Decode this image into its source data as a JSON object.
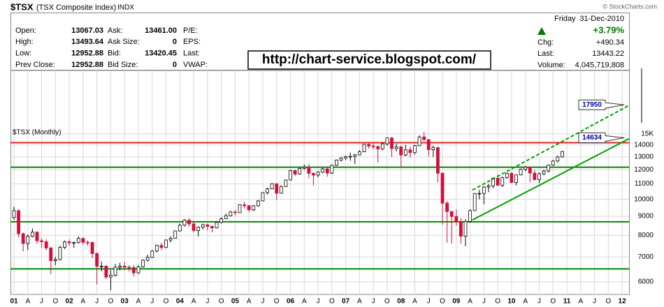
{
  "header": {
    "symbol": "$TSX",
    "name": "(TSX Composite Index)",
    "exchange": "INDX",
    "copyright": "© StockCharts.com",
    "weekday": "Friday",
    "date": "31-Dec-2010",
    "change_pct": "+3.79%",
    "url": "http://chart-service.blogspot.com/",
    "fields": [
      [
        "Open:",
        "13067.03",
        "Ask:",
        "13461.00",
        "P/E:"
      ],
      [
        "High:",
        "13493.64",
        "Ask Size:",
        "0",
        "EPS:"
      ],
      [
        "Low:",
        "12952.88",
        "Bid:",
        "13420.45",
        "Last:"
      ],
      [
        "Prev Close:",
        "12952.88",
        "Bid Size:",
        "0",
        "VWAP:"
      ]
    ],
    "right_fields": [
      [
        "Chg:",
        "+490.34"
      ],
      [
        "Last:",
        "13443.22"
      ],
      [
        "Volume:",
        "4,045,719,808"
      ]
    ]
  },
  "chart_data": {
    "type": "candlestick",
    "title": "$TSX (Monthly)",
    "log_scale": true,
    "grid": true,
    "up_color": "#000000",
    "down_color": "#d0103a",
    "xlim": [
      -0.76,
      133.5
    ],
    "ylim": [
      5550,
      22200
    ],
    "yticks": [
      6000,
      7000,
      8000,
      9000,
      10000,
      11000,
      12000,
      13000,
      14000,
      {
        "value": 15000,
        "label": "15K"
      }
    ],
    "xticks": [
      {
        "value": 0,
        "label": "01"
      },
      {
        "value": 3,
        "label": "A"
      },
      {
        "value": 6,
        "label": "J"
      },
      {
        "value": 9,
        "label": "O"
      },
      {
        "value": 12,
        "label": "02"
      },
      {
        "value": 15,
        "label": "A"
      },
      {
        "value": 18,
        "label": "J"
      },
      {
        "value": 21,
        "label": "O"
      },
      {
        "value": 24,
        "label": "03"
      },
      {
        "value": 27,
        "label": "A"
      },
      {
        "value": 30,
        "label": "J"
      },
      {
        "value": 33,
        "label": "O"
      },
      {
        "value": 36,
        "label": "04"
      },
      {
        "value": 39,
        "label": "A"
      },
      {
        "value": 42,
        "label": "J"
      },
      {
        "value": 45,
        "label": "O"
      },
      {
        "value": 48,
        "label": "05"
      },
      {
        "value": 51,
        "label": "A"
      },
      {
        "value": 54,
        "label": "J"
      },
      {
        "value": 57,
        "label": "O"
      },
      {
        "value": 60,
        "label": "06"
      },
      {
        "value": 63,
        "label": "A"
      },
      {
        "value": 66,
        "label": "J"
      },
      {
        "value": 69,
        "label": "O"
      },
      {
        "value": 72,
        "label": "07"
      },
      {
        "value": 75,
        "label": "A"
      },
      {
        "value": 78,
        "label": "J"
      },
      {
        "value": 81,
        "label": "O"
      },
      {
        "value": 84,
        "label": "08"
      },
      {
        "value": 87,
        "label": "A"
      },
      {
        "value": 90,
        "label": "J"
      },
      {
        "value": 93,
        "label": "O"
      },
      {
        "value": 96,
        "label": "09"
      },
      {
        "value": 99,
        "label": "A"
      },
      {
        "value": 102,
        "label": "J"
      },
      {
        "value": 105,
        "label": "O"
      },
      {
        "value": 108,
        "label": "10"
      },
      {
        "value": 111,
        "label": "A"
      },
      {
        "value": 114,
        "label": "J"
      },
      {
        "value": 117,
        "label": "O"
      },
      {
        "value": 120,
        "label": "11"
      },
      {
        "value": 123,
        "label": "A"
      },
      {
        "value": 126,
        "label": "J"
      },
      {
        "value": 129,
        "label": "O"
      },
      {
        "value": 132,
        "label": "12"
      }
    ],
    "open": [
      8934,
      9322,
      8079,
      7608,
      7947,
      8162,
      7736,
      7690,
      7399,
      6839,
      6886,
      7426,
      7688,
      7638,
      7651,
      7851,
      7663,
      7656,
      7146,
      6605,
      6612,
      6180,
      6249,
      6570,
      6615,
      6569,
      6555,
      6343,
      6586,
      6860,
      6983,
      7258,
      7517,
      7421,
      7773,
      7859,
      8221,
      8521,
      8788,
      8586,
      8244,
      8417,
      8546,
      8458,
      8377,
      8668,
      8871,
      9030,
      9247,
      9204,
      9669,
      9612,
      9369,
      9607,
      9903,
      10423,
      10669,
      11012,
      10383,
      10824,
      11272,
      11946,
      11688,
      12111,
      12204,
      11745,
      11613,
      11831,
      12074,
      11761,
      12345,
      12752,
      12908,
      13034,
      13045,
      13166,
      13417,
      14057,
      13907,
      13869,
      13660,
      14099,
      14625,
      13689,
      13833,
      13155,
      13583,
      13350,
      13937,
      14715,
      14467,
      13593,
      13771,
      11753,
      9763,
      9271,
      8988,
      8695,
      7957,
      8720,
      9325,
      10370,
      10375,
      10787,
      10868,
      11395,
      10911,
      11447,
      11746,
      11094,
      11630,
      12038,
      12211,
      11763,
      11294,
      11713,
      11914,
      12369,
      12676,
      13001
    ],
    "high": [
      9550,
      9400,
      8150,
      8050,
      8350,
      8200,
      7850,
      7800,
      7450,
      7000,
      7500,
      7750,
      7800,
      7700,
      7950,
      7900,
      7750,
      7700,
      7200,
      6800,
      6650,
      6450,
      6700,
      6750,
      6800,
      6650,
      6650,
      6650,
      6900,
      7100,
      7300,
      7550,
      7650,
      7800,
      7950,
      8250,
      8600,
      8850,
      8900,
      8700,
      8450,
      8600,
      8600,
      8500,
      8700,
      8950,
      9150,
      9300,
      9350,
      9700,
      9850,
      9650,
      9650,
      9950,
      10450,
      10750,
      11050,
      11050,
      10900,
      11300,
      12000,
      12000,
      12150,
      12400,
      12450,
      11800,
      11900,
      12150,
      12250,
      12400,
      12800,
      13000,
      13100,
      13350,
      13250,
      13550,
      14100,
      14150,
      14250,
      13900,
      14200,
      14650,
      14700,
      14100,
      13950,
      14000,
      13850,
      14000,
      14850,
      15150,
      14500,
      13950,
      13850,
      11800,
      9900,
      9300,
      9400,
      8900,
      8850,
      9400,
      10400,
      10600,
      10850,
      11000,
      11450,
      11650,
      11500,
      11800,
      11850,
      11650,
      12100,
      12300,
      12250,
      12000,
      11800,
      12000,
      12400,
      12750,
      13100,
      13500
    ],
    "low": [
      8800,
      7900,
      7250,
      7300,
      7900,
      7600,
      7400,
      7300,
      6300,
      6650,
      6850,
      7350,
      7500,
      7400,
      7600,
      7550,
      7500,
      6950,
      5900,
      6400,
      6100,
      5700,
      6200,
      6450,
      6450,
      6400,
      6200,
      6300,
      6550,
      6800,
      6950,
      7200,
      7300,
      7400,
      7650,
      7850,
      8200,
      8450,
      8450,
      8150,
      7950,
      8300,
      8250,
      8150,
      8350,
      8600,
      8850,
      9000,
      9050,
      9200,
      9450,
      9250,
      9300,
      9550,
      9900,
      10300,
      10650,
      9950,
      10350,
      10800,
      11250,
      11550,
      11650,
      12000,
      11400,
      10900,
      11450,
      11750,
      11500,
      11700,
      12300,
      12650,
      12750,
      12700,
      12450,
      13150,
      13400,
      13700,
      13600,
      12550,
      13550,
      13950,
      13000,
      13450,
      12250,
      13050,
      12950,
      13200,
      13900,
      14350,
      13050,
      13000,
      11100,
      8550,
      7650,
      7600,
      8500,
      7600,
      7480,
      8650,
      9300,
      10000,
      9700,
      10450,
      10700,
      10850,
      10800,
      11350,
      11050,
      10900,
      11600,
      11900,
      11100,
      11250,
      11050,
      11600,
      11800,
      12300,
      12550,
      12950
    ],
    "close": [
      9322,
      8079,
      7608,
      7947,
      8162,
      7736,
      7690,
      7399,
      6839,
      6886,
      7426,
      7688,
      7638,
      7651,
      7851,
      7663,
      7656,
      7146,
      6605,
      6612,
      6180,
      6249,
      6570,
      6615,
      6569,
      6555,
      6343,
      6586,
      6860,
      6983,
      7258,
      7517,
      7421,
      7773,
      7859,
      8221,
      8521,
      8788,
      8586,
      8244,
      8417,
      8546,
      8458,
      8377,
      8668,
      8871,
      9030,
      9247,
      9204,
      9669,
      9612,
      9369,
      9607,
      9903,
      10423,
      10669,
      11012,
      10383,
      10824,
      11272,
      11946,
      11688,
      12111,
      12204,
      11745,
      11613,
      11831,
      12074,
      11761,
      12345,
      12752,
      12908,
      13034,
      13045,
      13166,
      13417,
      14057,
      13907,
      13869,
      13660,
      14099,
      14625,
      13689,
      13833,
      13155,
      13583,
      13350,
      13937,
      14715,
      14467,
      13593,
      13771,
      11753,
      9763,
      9271,
      8988,
      8695,
      7957,
      8720,
      9325,
      10370,
      10375,
      10787,
      10868,
      11395,
      10911,
      11447,
      11746,
      11094,
      11630,
      12038,
      12211,
      11763,
      11294,
      11713,
      11914,
      12369,
      12676,
      13001,
      13443
    ],
    "hlines": [
      {
        "value": 14200,
        "color": "#e02020"
      },
      {
        "value": 12200,
        "color": "#008800"
      },
      {
        "value": 8700,
        "color": "#008800"
      },
      {
        "value": 6500,
        "color": "#008800"
      }
    ],
    "trendlines": [
      {
        "x": [
          99.5,
          133.5
        ],
        "y": [
          8800,
          14555
        ],
        "color": "#00a000",
        "dashed": false
      },
      {
        "x": [
          99.5,
          133.5
        ],
        "y": [
          10590,
          17890
        ],
        "color": "#00a000",
        "dashed": true
      }
    ],
    "callouts": [
      {
        "value": 17950
      },
      {
        "value": 14634
      }
    ]
  }
}
